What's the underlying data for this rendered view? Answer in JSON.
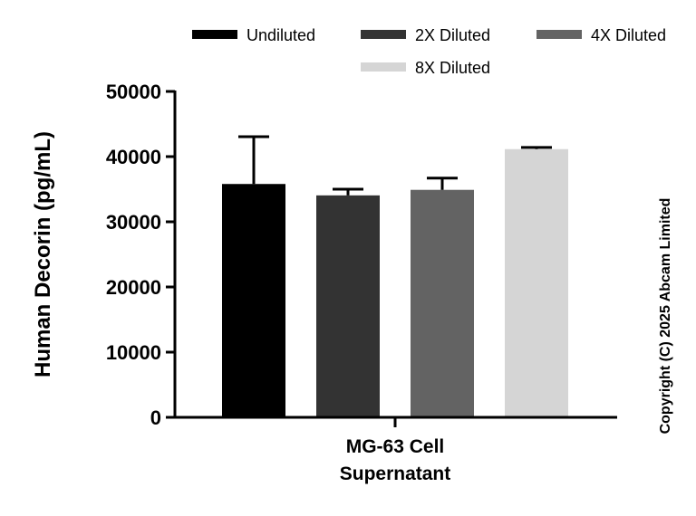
{
  "chart_data": {
    "type": "bar",
    "title": "",
    "xlabel": "",
    "ylabel": "Human Decorin (pg/mL)",
    "ylim": [
      0,
      50000
    ],
    "yticks": [
      0,
      10000,
      20000,
      30000,
      40000,
      50000
    ],
    "ytick_labels": [
      "0",
      "10000",
      "20000",
      "30000",
      "40000",
      "50000"
    ],
    "categories": [
      "MG-63 Cell Supernatant"
    ],
    "category_lines": [
      "MG-63 Cell",
      "Supernatant"
    ],
    "grid": false,
    "legend_position": "top",
    "series": [
      {
        "name": "Undiluted",
        "values": [
          35800
        ],
        "error": [
          7250
        ],
        "color": "#000000"
      },
      {
        "name": "2X Diluted",
        "values": [
          34050
        ],
        "error": [
          950
        ],
        "color": "#333333"
      },
      {
        "name": "4X Diluted",
        "values": [
          34900
        ],
        "error": [
          1800
        ],
        "color": "#636363"
      },
      {
        "name": "8X Diluted",
        "values": [
          41150
        ],
        "error": [
          250
        ],
        "color": "#d5d5d5"
      }
    ]
  },
  "copyright": "Copyright (C) 2025 Abcam Limited"
}
